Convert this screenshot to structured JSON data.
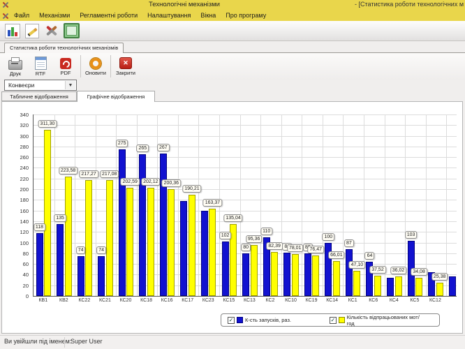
{
  "window": {
    "title": "Технологічні механізми",
    "title_right": "- [Статистика роботи технологічних м",
    "status_label": "Ви увійшли під іменем:",
    "status_user": "Super User"
  },
  "menu": {
    "items": [
      "Файл",
      "Механізми",
      "Регламентні роботи",
      "Налаштування",
      "Вікна",
      "Про програму"
    ]
  },
  "main_toolbar": {
    "icons": [
      "chart-icon",
      "edit-icon",
      "tools-icon",
      "form-icon"
    ]
  },
  "document_tab": {
    "label": "Статистика роботи технологічних механізмів"
  },
  "report_toolbar": {
    "buttons": [
      {
        "label": "Друк",
        "icon": "printer-icon",
        "sep_after": false
      },
      {
        "label": "RTF",
        "icon": "rtf-icon",
        "sep_after": false
      },
      {
        "label": "PDF",
        "icon": "pdf-icon",
        "sep_after": true
      },
      {
        "label": "Оновити",
        "icon": "refresh-icon",
        "sep_after": true
      },
      {
        "label": "Закрити",
        "icon": "close-icon",
        "sep_after": false
      }
    ]
  },
  "filter": {
    "selected": "Конвеєри"
  },
  "view_tabs": [
    {
      "label": "Табличне відображення",
      "active": false
    },
    {
      "label": "Графічне відображення",
      "active": true
    }
  ],
  "chart_data": {
    "type": "bar",
    "title": "",
    "categories": [
      "КВ1",
      "КВ2",
      "КС22",
      "КС21",
      "КС20",
      "КС18",
      "КС16",
      "КС17",
      "КС23",
      "КС15",
      "КС13",
      "КС2",
      "КС10",
      "КС19",
      "КС14",
      "КС1",
      "КС6",
      "КС4",
      "КС5",
      "КС12",
      ""
    ],
    "series": [
      {
        "name": "К-сть запусків, раз.",
        "color": "#1212d0",
        "values": [
          118,
          135,
          74,
          74,
          275,
          265,
          267,
          178,
          160,
          102,
          80,
          110,
          81,
          80,
          100,
          87,
          64,
          34,
          103,
          44,
          37
        ],
        "labels": [
          "118",
          "135",
          "74",
          "74",
          "275",
          "265",
          "267",
          "",
          "",
          "102",
          "80",
          "110",
          "81",
          "80",
          "100",
          "87",
          "64",
          "",
          "103",
          "",
          ""
        ]
      },
      {
        "name": "Кількість відпрацьованих мот/год",
        "color": "#ffff00",
        "values": [
          311.3,
          223.58,
          217.27,
          217.08,
          202.59,
          202.12,
          200.36,
          190.21,
          163.37,
          135.04,
          95.36,
          82.39,
          78.01,
          76.47,
          66.01,
          47.1,
          37.52,
          36.02,
          34.08,
          25.38,
          null
        ],
        "labels": [
          "311,30",
          "223,58",
          "217,27",
          "217,08",
          "202,59",
          "202,12",
          "200,36",
          "190,21",
          "163,37",
          "135,04",
          "95,36",
          "82,39",
          "78,01",
          "76,47",
          "66,01",
          "47,10",
          "37,52",
          "36,02",
          "34,08",
          "25,38",
          ""
        ]
      }
    ],
    "ylim": [
      0,
      340
    ],
    "ytick_step": 20,
    "grid": true,
    "legend_position": "bottom"
  }
}
